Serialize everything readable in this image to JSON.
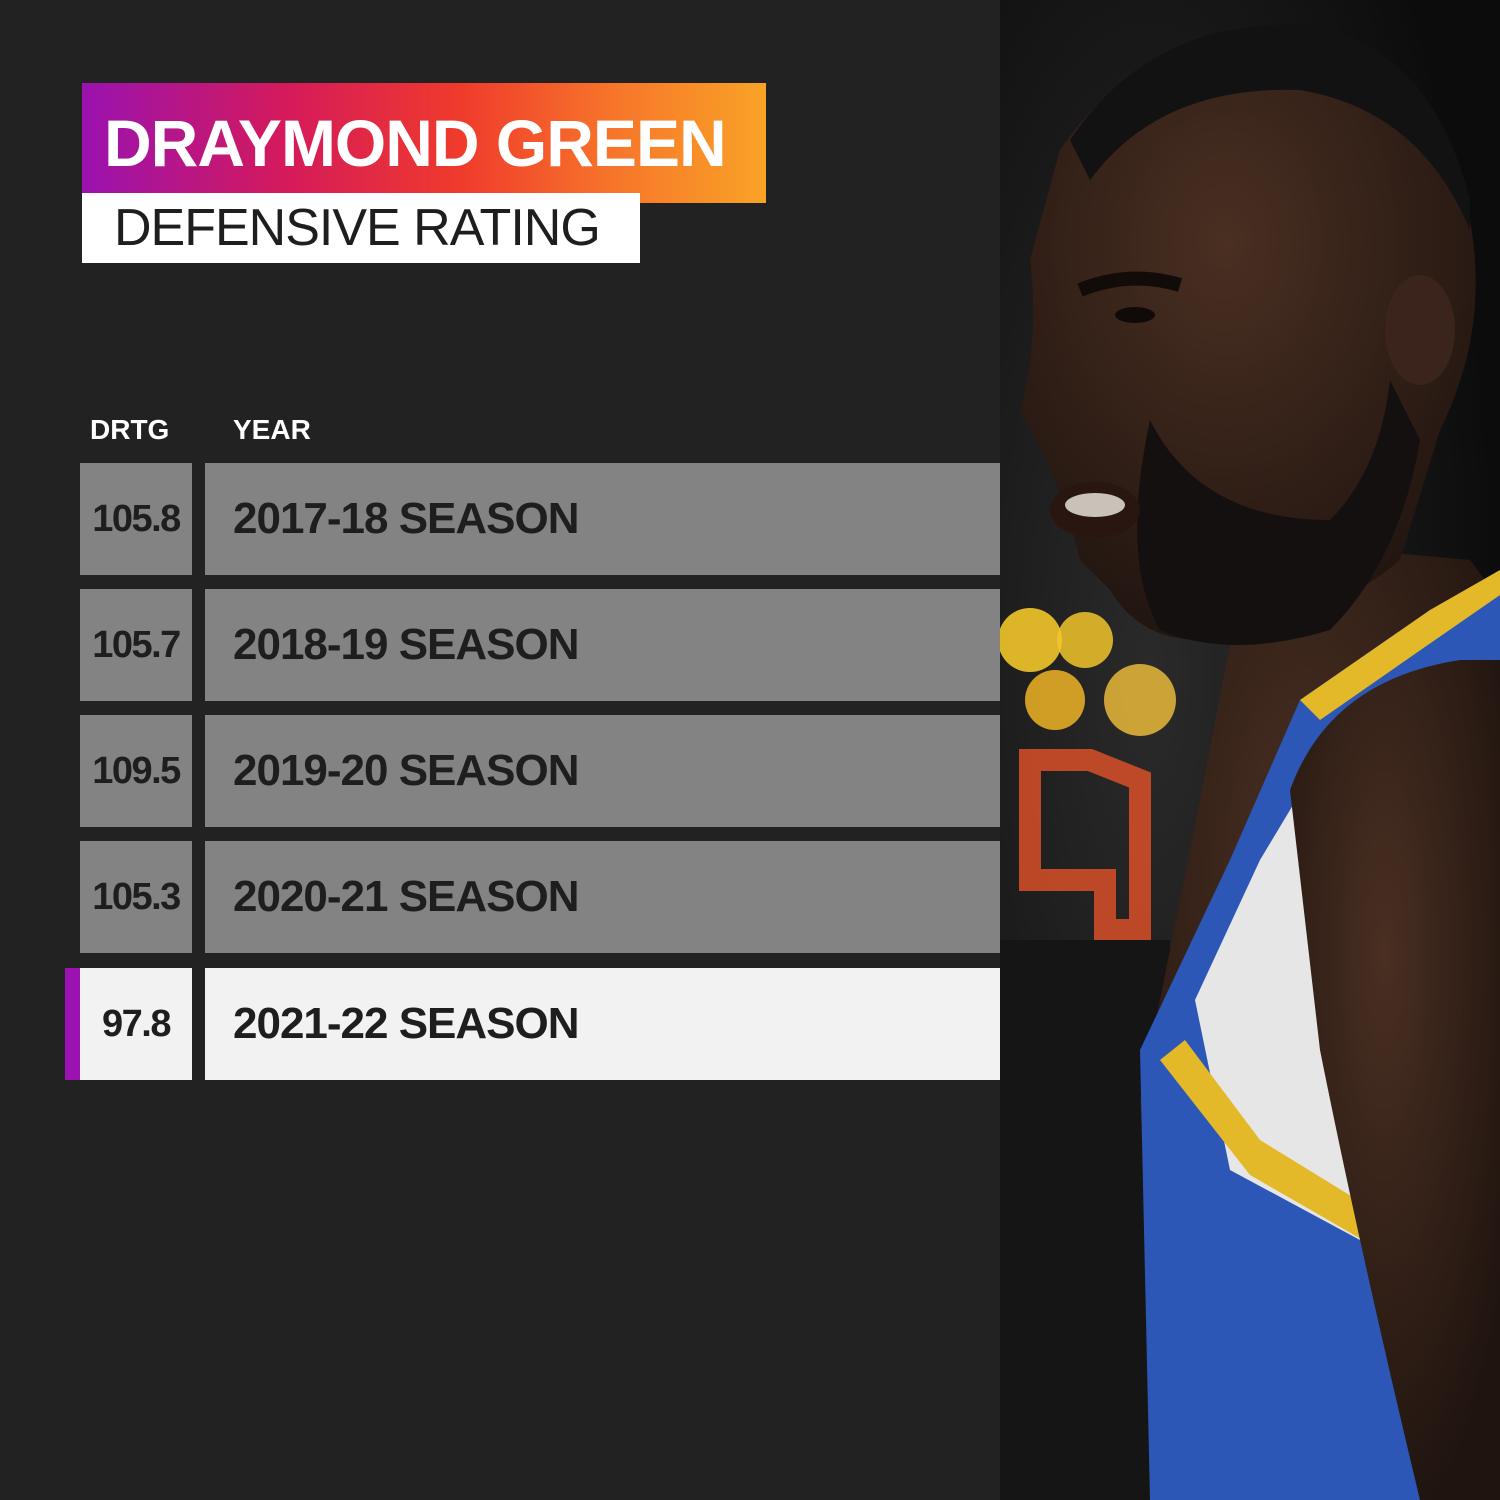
{
  "title": "DRAYMOND GREEN",
  "subtitle": "DEFENSIVE RATING",
  "colors": {
    "background": "#222222",
    "row": "#838383",
    "highlight_row": "#f2f2f2",
    "accent": "#9a12b0",
    "title_gradient": [
      "#9a12b0",
      "#d51a5a",
      "#ef3a2c",
      "#f7762a",
      "#f9a326"
    ]
  },
  "photo": {
    "icon": "player-photo"
  },
  "chart_data": {
    "type": "table",
    "title": "DRAYMOND GREEN",
    "subtitle": "DEFENSIVE RATING",
    "columns": [
      "DRTG",
      "YEAR"
    ],
    "rows": [
      {
        "value": "105.8",
        "year": "2017-18 SEASON"
      },
      {
        "value": "105.7",
        "year": "2018-19 SEASON"
      },
      {
        "value": "109.5",
        "year": "2019-20 SEASON"
      },
      {
        "value": "105.3",
        "year": "2020-21 SEASON"
      },
      {
        "value": "97.8",
        "year": "2021-22 SEASON"
      }
    ],
    "highlighted_row": 4
  }
}
